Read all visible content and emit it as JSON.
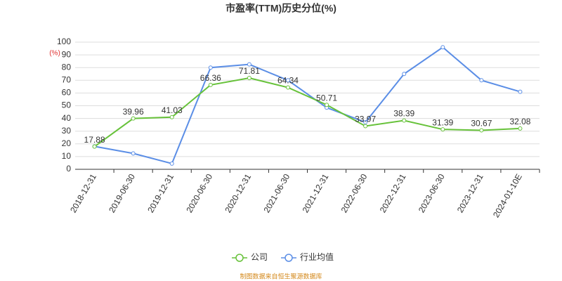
{
  "chart_data": {
    "type": "line",
    "title": "市盈率(TTM)历史分位(%)",
    "y_unit": "(%)",
    "categories": [
      "2018-12-31",
      "2019-06-30",
      "2019-12-31",
      "2020-06-30",
      "2020-12-31",
      "2021-06-30",
      "2021-12-31",
      "2022-06-30",
      "2022-12-31",
      "2023-06-30",
      "2023-12-31",
      "2024-01-10E"
    ],
    "series": [
      {
        "name": "公司",
        "color": "#67c23a",
        "values": [
          17.88,
          39.96,
          41.03,
          66.36,
          71.81,
          64.34,
          50.71,
          33.97,
          38.39,
          31.39,
          30.67,
          32.08
        ],
        "data_labels": true
      },
      {
        "name": "行业均值",
        "color": "#5b8ee6",
        "values": [
          18,
          12.5,
          4.5,
          80,
          82.5,
          70,
          48.5,
          37,
          75,
          96,
          70,
          61
        ],
        "data_labels": false
      }
    ],
    "ylim": [
      0,
      100
    ],
    "yticks": [
      0,
      10,
      20,
      30,
      40,
      50,
      60,
      70,
      80,
      90,
      100
    ],
    "grid": true,
    "source": "制图数据来自恒生聚源数据库"
  }
}
